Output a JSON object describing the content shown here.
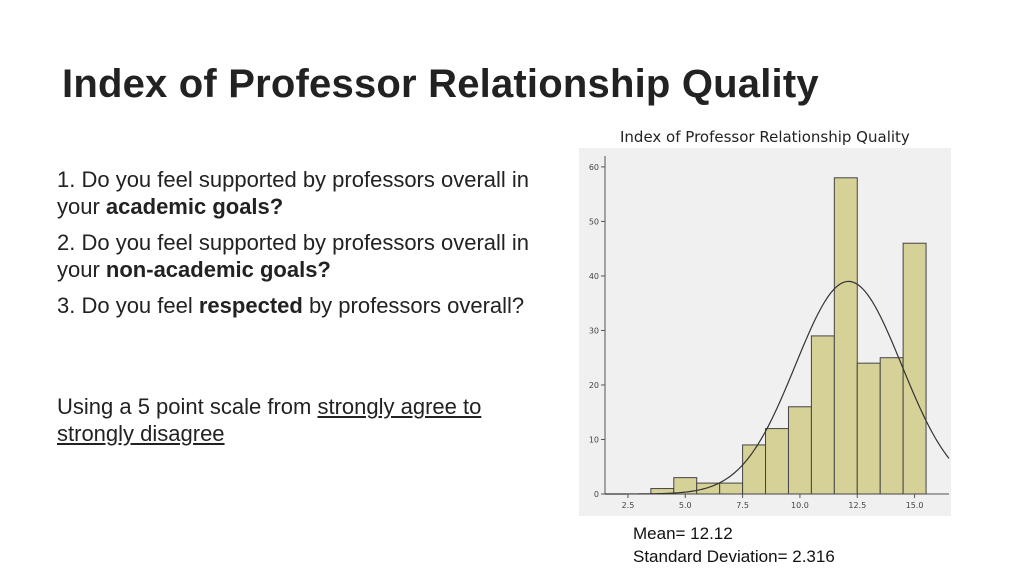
{
  "slide": {
    "title": "Index of Professor Relationship Quality"
  },
  "questions": [
    {
      "prefix": "1. Do you feel supported by professors overall in your ",
      "bold": "academic goals?",
      "suffix": ""
    },
    {
      "prefix": "2. Do you feel supported by professors overall in your ",
      "bold": "non-academic goals?",
      "suffix": ""
    },
    {
      "prefix": "3. Do you feel ",
      "bold": "respected",
      "suffix": " by professors overall?"
    }
  ],
  "scale_note": {
    "prefix": "Using a 5 point scale from ",
    "underlined": "strongly agree to strongly disagree"
  },
  "stats": {
    "mean": "Mean= 12.12",
    "sd": "Standard Deviation= 2.316"
  },
  "chart_data": {
    "type": "bar",
    "title": "Index of Professor Relationship Quality",
    "xlabel": "",
    "ylabel": "",
    "x_ticks": [
      "2.5",
      "5.0",
      "7.5",
      "10.0",
      "12.5",
      "15.0"
    ],
    "y_ticks": [
      "0",
      "10",
      "20",
      "30",
      "40",
      "50",
      "60"
    ],
    "xlim": [
      1.5,
      16.5
    ],
    "ylim": [
      0,
      62
    ],
    "bin_width": 1,
    "bins": [
      {
        "x": 4,
        "value": 1
      },
      {
        "x": 5,
        "value": 3
      },
      {
        "x": 6,
        "value": 2
      },
      {
        "x": 7,
        "value": 2
      },
      {
        "x": 8,
        "value": 9
      },
      {
        "x": 9,
        "value": 12
      },
      {
        "x": 10,
        "value": 16
      },
      {
        "x": 11,
        "value": 29
      },
      {
        "x": 12,
        "value": 58
      },
      {
        "x": 13,
        "value": 24
      },
      {
        "x": 14,
        "value": 25
      },
      {
        "x": 15,
        "value": 46
      }
    ],
    "normal_curve": {
      "mean": 12.12,
      "sd": 2.316,
      "peak": 39
    },
    "bar_color": "#d6d196",
    "bar_edge": "#444444",
    "plot_bg": "#f0f0f0",
    "grid": false
  }
}
